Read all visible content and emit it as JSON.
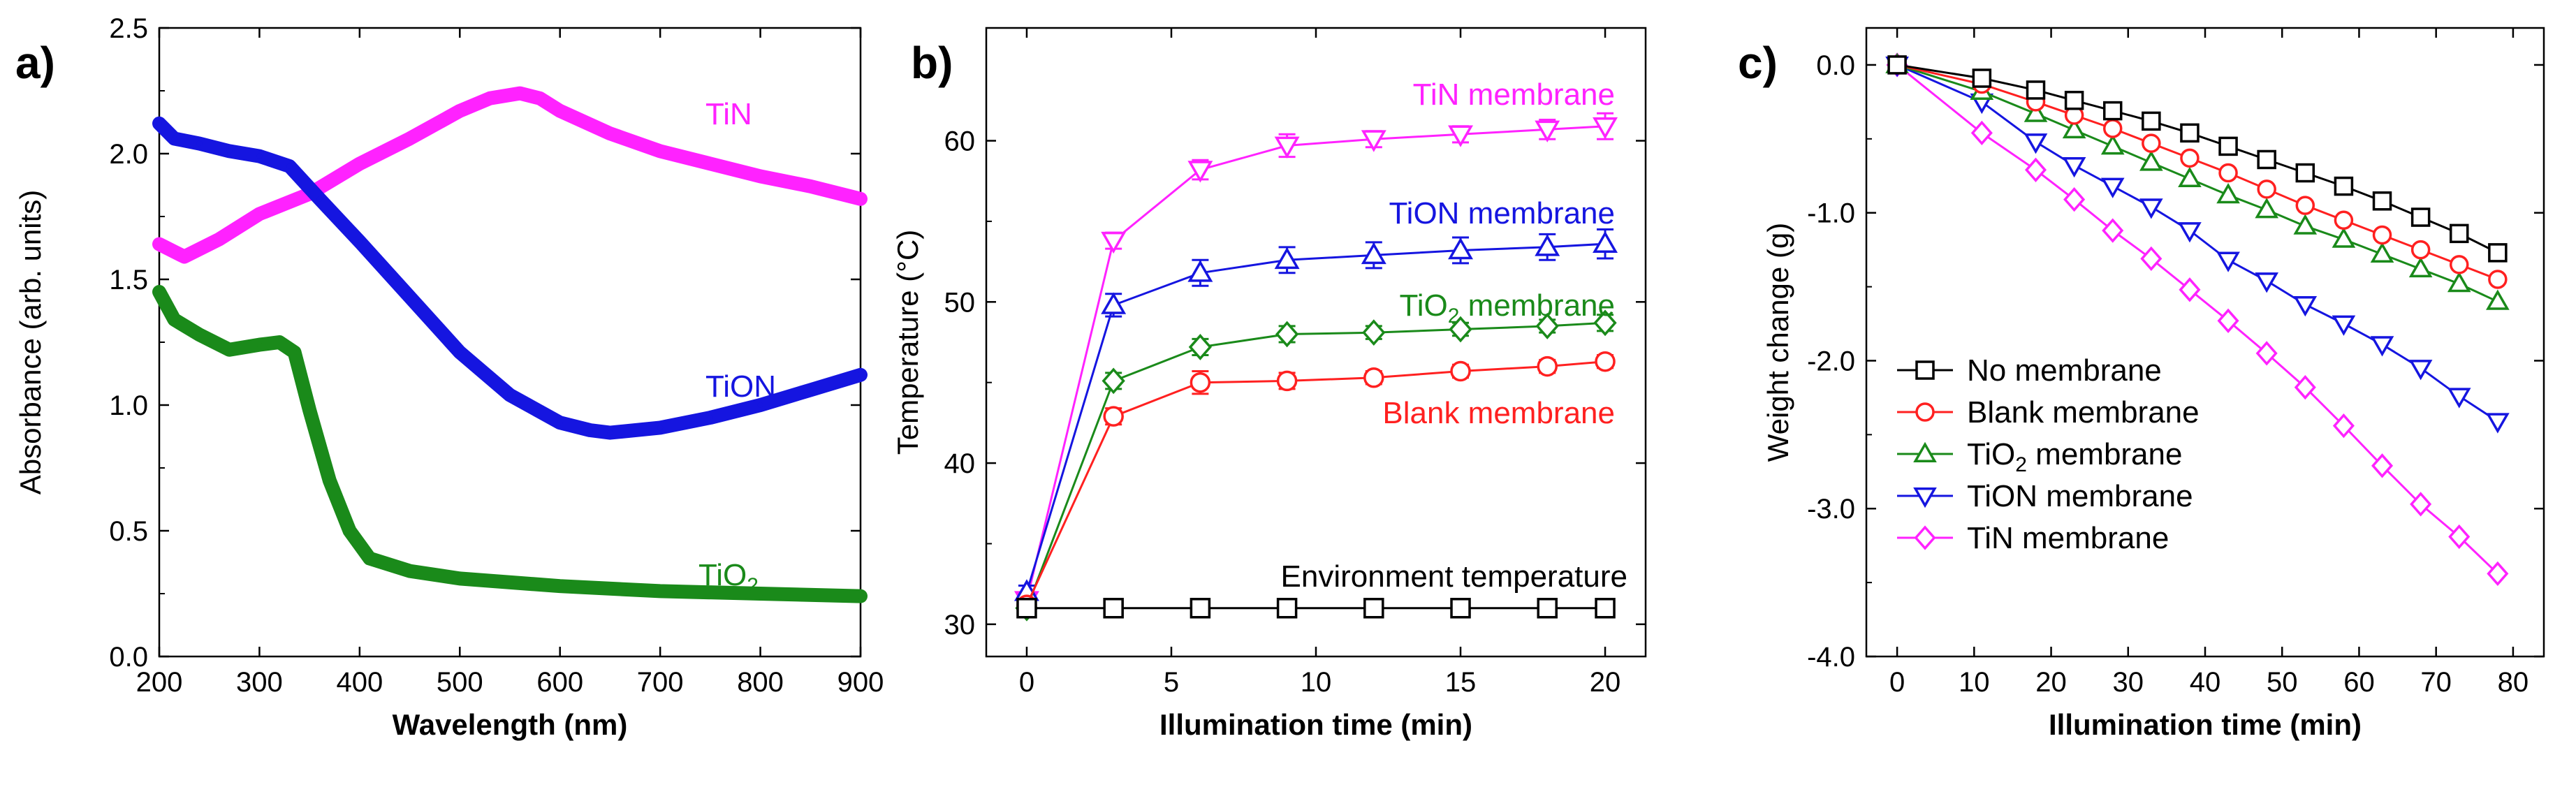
{
  "figure": {
    "panels": [
      "a",
      "b",
      "c"
    ]
  },
  "colors": {
    "black": "#000000",
    "red": "#ff2020",
    "green": "#1a8a1a",
    "blue": "#1515e0",
    "magenta": "#ff22ff"
  },
  "chart_data": [
    {
      "panel_label": "a)",
      "type": "line",
      "title": "",
      "xlabel": "Wavelength (nm)",
      "ylabel": "Absorbance (arb. units)",
      "xlim": [
        200,
        900
      ],
      "ylim": [
        0.0,
        2.5
      ],
      "xticks": [
        200,
        300,
        400,
        500,
        600,
        700,
        800,
        900
      ],
      "yticks": [
        0.0,
        0.5,
        1.0,
        1.5,
        2.0,
        2.5
      ],
      "xtick_labels": [
        "200",
        "300",
        "400",
        "500",
        "600",
        "700",
        "800",
        "900"
      ],
      "ytick_labels": [
        "0.0",
        "0.5",
        "1.0",
        "1.5",
        "2.0",
        "2.5"
      ],
      "series": [
        {
          "name": "TiN",
          "label": "TiN",
          "sub": "",
          "color": "#ff22ff",
          "x": [
            200,
            225,
            260,
            300,
            350,
            400,
            450,
            500,
            530,
            560,
            580,
            600,
            650,
            700,
            750,
            800,
            850,
            900
          ],
          "y": [
            1.64,
            1.59,
            1.66,
            1.76,
            1.84,
            1.96,
            2.06,
            2.17,
            2.22,
            2.24,
            2.22,
            2.17,
            2.08,
            2.01,
            1.96,
            1.91,
            1.87,
            1.82
          ]
        },
        {
          "name": "TiON",
          "label": "TiON",
          "sub": "",
          "color": "#1515e0",
          "x": [
            200,
            215,
            240,
            270,
            300,
            330,
            360,
            400,
            450,
            500,
            550,
            600,
            630,
            650,
            700,
            750,
            800,
            850,
            900
          ],
          "y": [
            2.12,
            2.06,
            2.04,
            2.01,
            1.99,
            1.95,
            1.82,
            1.65,
            1.43,
            1.21,
            1.04,
            0.93,
            0.9,
            0.89,
            0.91,
            0.95,
            1.0,
            1.06,
            1.12
          ]
        },
        {
          "name": "TiO2",
          "label": "TiO",
          "sub": "2",
          "color": "#1a8a1a",
          "x": [
            200,
            215,
            240,
            270,
            300,
            320,
            335,
            350,
            370,
            390,
            410,
            450,
            500,
            600,
            700,
            800,
            900
          ],
          "y": [
            1.45,
            1.34,
            1.28,
            1.22,
            1.24,
            1.25,
            1.21,
            0.98,
            0.7,
            0.5,
            0.39,
            0.34,
            0.31,
            0.28,
            0.26,
            0.25,
            0.24
          ]
        }
      ]
    },
    {
      "panel_label": "b)",
      "type": "line",
      "title": "",
      "xlabel": "Illumination time (min)",
      "ylabel": "Temperature (°C)",
      "xlim": [
        -1.4,
        21.4
      ],
      "ylim": [
        28,
        67
      ],
      "xticks": [
        0,
        5,
        10,
        15,
        20
      ],
      "yticks": [
        30,
        40,
        50,
        60
      ],
      "xtick_labels": [
        "0",
        "5",
        "10",
        "15",
        "20"
      ],
      "ytick_labels": [
        "30",
        "40",
        "50",
        "60"
      ],
      "series": [
        {
          "name": "TiN membrane",
          "label": "TiN membrane",
          "sub": "",
          "after": "",
          "color": "#ff22ff",
          "marker": "triangle-down",
          "x": [
            0,
            3,
            6,
            9,
            12,
            15,
            18,
            20
          ],
          "y": [
            31.5,
            53.8,
            58.2,
            59.7,
            60.1,
            60.4,
            60.7,
            60.9
          ],
          "err": [
            0.4,
            0.5,
            0.6,
            0.7,
            0.5,
            0.5,
            0.6,
            0.8
          ]
        },
        {
          "name": "TiON membrane",
          "label": "TiON membrane",
          "sub": "",
          "after": "",
          "color": "#1515e0",
          "marker": "triangle-up",
          "x": [
            0,
            3,
            6,
            9,
            12,
            15,
            18,
            20
          ],
          "y": [
            32.0,
            49.8,
            51.8,
            52.6,
            52.9,
            53.2,
            53.4,
            53.6
          ],
          "err": [
            0.4,
            0.7,
            0.8,
            0.8,
            0.8,
            0.8,
            0.8,
            0.9
          ]
        },
        {
          "name": "TiO2 membrane",
          "label": "TiO",
          "sub": "2",
          "after": " membrane",
          "color": "#1a8a1a",
          "marker": "diamond",
          "x": [
            0,
            3,
            6,
            9,
            12,
            15,
            18,
            20
          ],
          "y": [
            31.0,
            45.1,
            47.2,
            48.0,
            48.1,
            48.3,
            48.5,
            48.7
          ],
          "err": [
            0.3,
            0.5,
            0.5,
            0.5,
            0.4,
            0.4,
            0.4,
            0.5
          ]
        },
        {
          "name": "Blank membrane",
          "label": "Blank membrane",
          "sub": "",
          "after": "",
          "color": "#ff2020",
          "marker": "circle",
          "x": [
            0,
            3,
            6,
            9,
            12,
            15,
            18,
            20
          ],
          "y": [
            31.2,
            42.9,
            45.0,
            45.1,
            45.3,
            45.7,
            46.0,
            46.3
          ],
          "err": [
            0.3,
            0.5,
            0.7,
            0.5,
            0.4,
            0.4,
            0.4,
            0.4
          ]
        },
        {
          "name": "Environment temperature",
          "label": "Environment temperature",
          "sub": "",
          "after": "",
          "color": "#000000",
          "marker": "square",
          "x": [
            0,
            3,
            6,
            9,
            12,
            15,
            18,
            20
          ],
          "y": [
            31.0,
            31.0,
            31.0,
            31.0,
            31.0,
            31.0,
            31.0,
            31.0
          ],
          "err": [
            0,
            0,
            0,
            0,
            0,
            0,
            0,
            0
          ]
        }
      ]
    },
    {
      "panel_label": "c)",
      "type": "line",
      "title": "",
      "xlabel": "Illumination time (min)",
      "ylabel": "Weight change (g)",
      "xlim": [
        -4,
        84
      ],
      "ylim": [
        -4.0,
        0.25
      ],
      "xticks": [
        0,
        10,
        20,
        30,
        40,
        50,
        60,
        70,
        80
      ],
      "yticks": [
        0.0,
        -1.0,
        -2.0,
        -3.0,
        -4.0
      ],
      "xtick_labels": [
        "0",
        "10",
        "20",
        "30",
        "40",
        "50",
        "60",
        "70",
        "80"
      ],
      "ytick_labels": [
        "0.0",
        "-1.0",
        "-2.0",
        "-3.0",
        "-4.0"
      ],
      "legend_position": "center-left",
      "series": [
        {
          "name": "No membrane",
          "label": "No membrane",
          "sub": "",
          "after": "",
          "color": "#000000",
          "marker": "square",
          "x": [
            0,
            11,
            18,
            23,
            28,
            33,
            38,
            43,
            48,
            53,
            58,
            63,
            68,
            73,
            78
          ],
          "y": [
            0.0,
            -0.09,
            -0.17,
            -0.24,
            -0.31,
            -0.38,
            -0.46,
            -0.55,
            -0.64,
            -0.73,
            -0.82,
            -0.92,
            -1.03,
            -1.14,
            -1.27
          ]
        },
        {
          "name": "Blank membrane",
          "label": "Blank membrane",
          "sub": "",
          "after": "",
          "color": "#ff2020",
          "marker": "circle",
          "x": [
            0,
            11,
            18,
            23,
            28,
            33,
            38,
            43,
            48,
            53,
            58,
            63,
            68,
            73,
            78
          ],
          "y": [
            0.0,
            -0.13,
            -0.25,
            -0.34,
            -0.43,
            -0.53,
            -0.63,
            -0.73,
            -0.84,
            -0.95,
            -1.05,
            -1.15,
            -1.25,
            -1.35,
            -1.45
          ]
        },
        {
          "name": "TiO2 membrane",
          "label": "TiO",
          "sub": "2",
          "after": " membrane",
          "color": "#1a8a1a",
          "marker": "triangle-up",
          "x": [
            0,
            11,
            18,
            23,
            28,
            33,
            38,
            43,
            48,
            53,
            58,
            63,
            68,
            73,
            78
          ],
          "y": [
            0.0,
            -0.18,
            -0.33,
            -0.44,
            -0.55,
            -0.66,
            -0.77,
            -0.88,
            -0.98,
            -1.09,
            -1.18,
            -1.28,
            -1.38,
            -1.48,
            -1.6
          ]
        },
        {
          "name": "TiON membrane",
          "label": "TiON membrane",
          "sub": "",
          "after": "",
          "color": "#1515e0",
          "marker": "triangle-down",
          "x": [
            0,
            11,
            18,
            23,
            28,
            33,
            38,
            43,
            48,
            53,
            58,
            63,
            68,
            73,
            78
          ],
          "y": [
            0.0,
            -0.25,
            -0.52,
            -0.68,
            -0.82,
            -0.96,
            -1.12,
            -1.32,
            -1.46,
            -1.62,
            -1.75,
            -1.89,
            -2.05,
            -2.24,
            -2.41
          ]
        },
        {
          "name": "TiN membrane",
          "label": "TiN membrane",
          "sub": "",
          "after": "",
          "color": "#ff22ff",
          "marker": "diamond",
          "x": [
            0,
            11,
            18,
            23,
            28,
            33,
            38,
            43,
            48,
            53,
            58,
            63,
            68,
            73,
            78
          ],
          "y": [
            0.0,
            -0.46,
            -0.71,
            -0.91,
            -1.12,
            -1.31,
            -1.52,
            -1.73,
            -1.95,
            -2.18,
            -2.44,
            -2.71,
            -2.97,
            -3.19,
            -3.44
          ]
        }
      ]
    }
  ]
}
